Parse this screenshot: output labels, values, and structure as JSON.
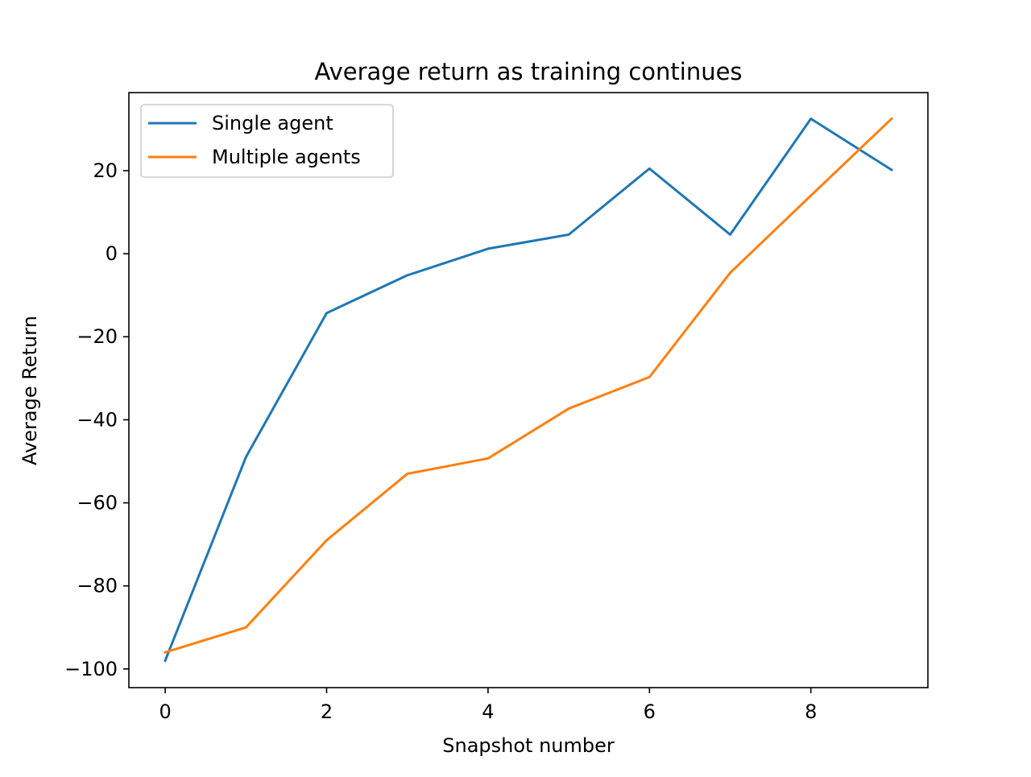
{
  "chart_data": {
    "type": "line",
    "title": "Average return as training continues",
    "xlabel": "Snapshot number",
    "ylabel": "Average Return",
    "x": [
      0,
      1,
      2,
      3,
      4,
      5,
      6,
      7,
      8,
      9
    ],
    "xlim": [
      -0.45,
      9.45
    ],
    "ylim": [
      -104.5,
      38.8
    ],
    "xticks": [
      0,
      2,
      4,
      6,
      8
    ],
    "xtick_labels": [
      "0",
      "2",
      "4",
      "6",
      "8"
    ],
    "yticks": [
      -100,
      -80,
      -60,
      -40,
      -20,
      0,
      20
    ],
    "ytick_labels": [
      "−100",
      "−80",
      "−60",
      "−40",
      "−20",
      "0",
      "20"
    ],
    "grid": false,
    "legend_position": "upper-left",
    "series": [
      {
        "name": "Single agent",
        "color": "#1f77b4",
        "values": [
          -98,
          -49,
          -14.3,
          -5.2,
          1.2,
          4.6,
          20.5,
          4.6,
          32.5,
          20.2
        ]
      },
      {
        "name": "Multiple agents",
        "color": "#ff7f0e",
        "values": [
          -96,
          -90,
          -69,
          -53,
          -49.3,
          -37.3,
          -29.7,
          -4.6,
          14,
          32.5
        ]
      }
    ]
  }
}
